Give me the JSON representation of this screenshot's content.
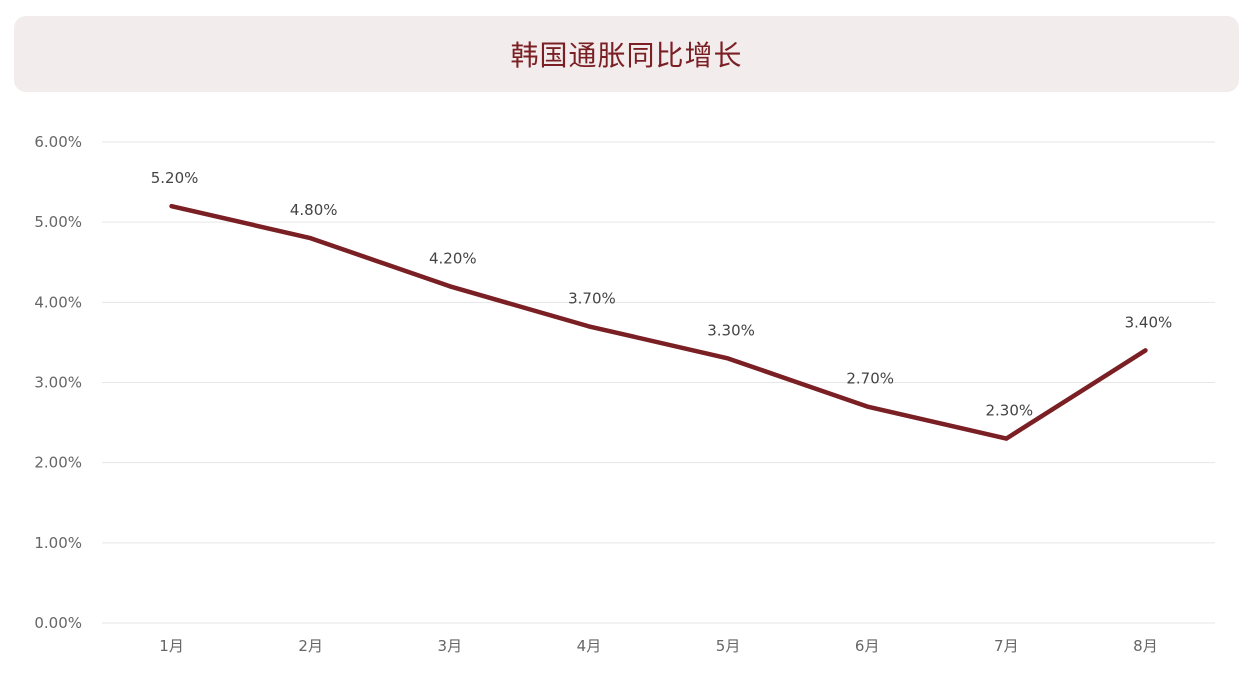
{
  "header": {
    "title": "韩国通胀同比增长"
  },
  "chart_data": {
    "type": "line",
    "title": "韩国通胀同比增长",
    "xlabel": "",
    "ylabel": "",
    "categories": [
      "1月",
      "2月",
      "3月",
      "4月",
      "5月",
      "6月",
      "7月",
      "8月"
    ],
    "series": [
      {
        "values": [
          5.2,
          4.8,
          4.2,
          3.7,
          3.3,
          2.7,
          2.3,
          3.4
        ],
        "labels": [
          "5.20%",
          "4.80%",
          "4.20%",
          "3.70%",
          "3.30%",
          "2.70%",
          "2.30%",
          "3.40%"
        ],
        "color": "#7a1f24"
      }
    ],
    "ylim": [
      0,
      6
    ],
    "yticks": [
      0,
      1,
      2,
      3,
      4,
      5,
      6
    ],
    "ytick_labels": [
      "0.00%",
      "1.00%",
      "2.00%",
      "3.00%",
      "4.00%",
      "5.00%",
      "6.00%"
    ],
    "grid": true,
    "grid_color": "#e6e6e6",
    "legend": "none"
  }
}
